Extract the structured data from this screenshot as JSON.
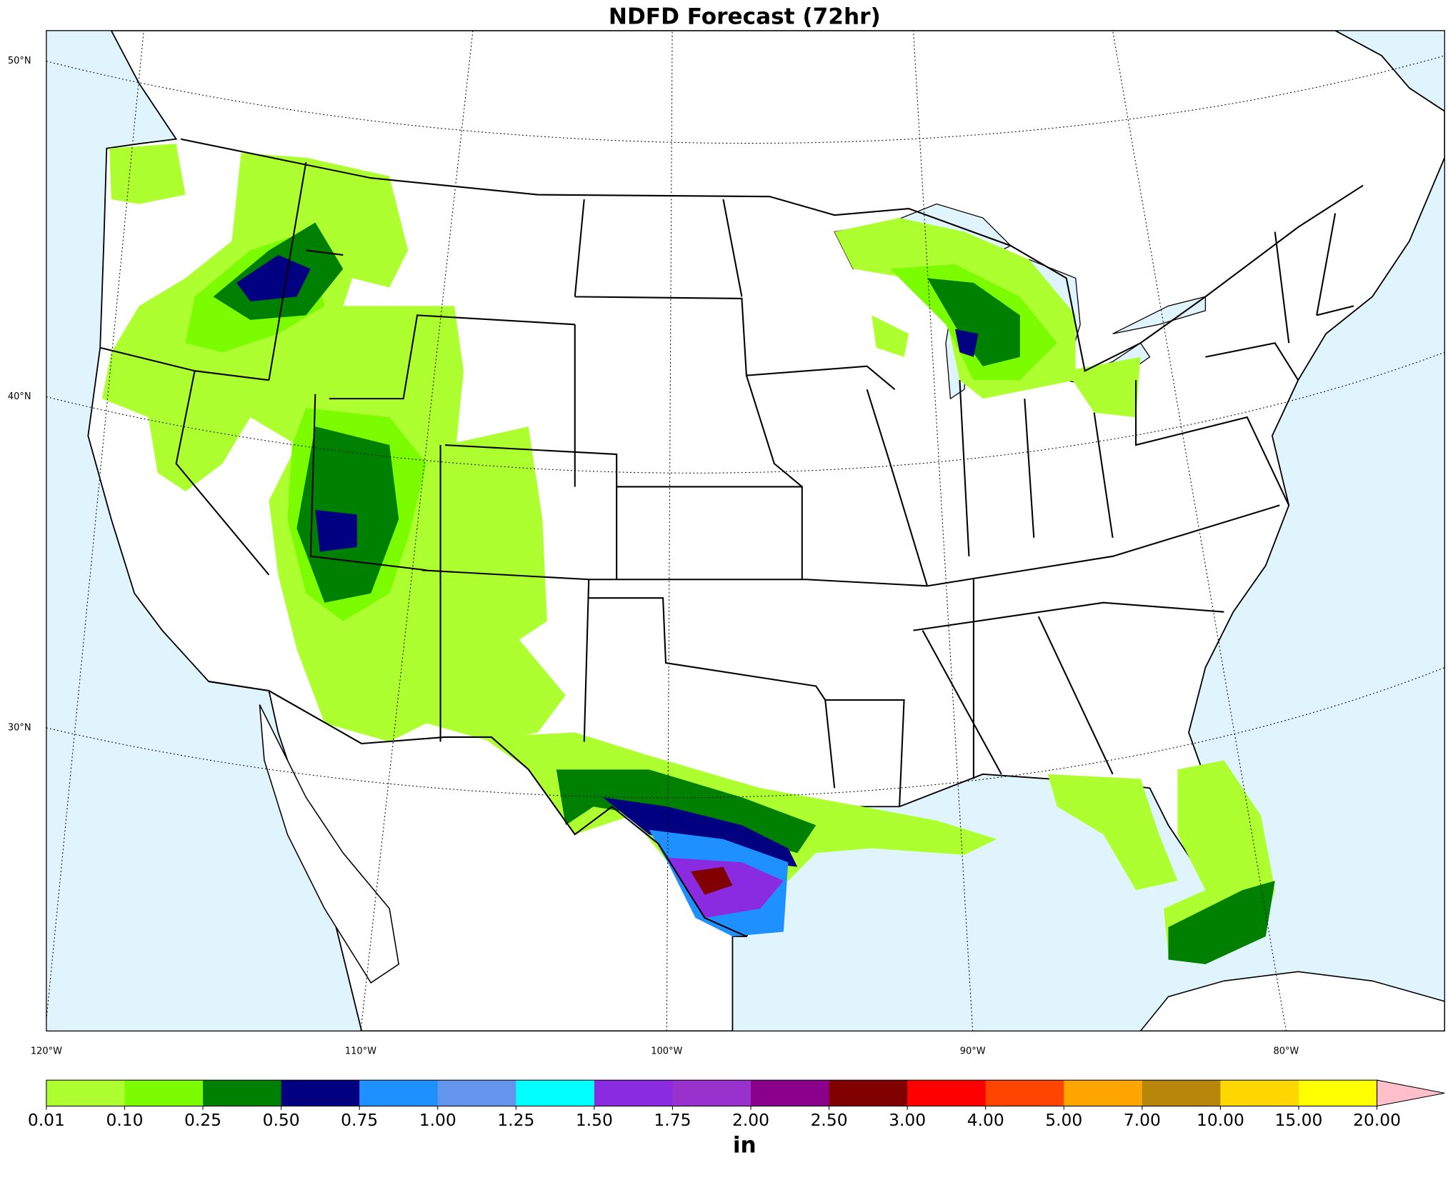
{
  "title": "NDFD Forecast (72hr)",
  "map": {
    "lat_labels": [
      "50°N",
      "40°N",
      "30°N"
    ],
    "lon_labels": [
      "120°W",
      "110°W",
      "100°W",
      "90°W",
      "80°W"
    ]
  },
  "colorbar": {
    "ticks": [
      0.01,
      {
        "value": 0.1,
        "label": "0.10"
      },
      0.25,
      {
        "value": 0.5,
        "label": "0.50"
      },
      0.75,
      {
        "value": 1,
        "label": "1.00"
      },
      1.25,
      {
        "value": 1.5,
        "label": "1.50"
      },
      1.75,
      {
        "value": 2,
        "label": "2.00"
      },
      {
        "value": 2.5,
        "label": "2.50"
      },
      {
        "value": 3,
        "label": "3.00"
      },
      {
        "value": 4,
        "label": "4.00"
      },
      {
        "value": 5,
        "label": "5.00"
      },
      {
        "value": 7,
        "label": "7.00"
      },
      {
        "value": 10,
        "label": "10.00"
      },
      {
        "value": 15,
        "label": "15.00"
      },
      {
        "value": 20,
        "label": "20.00"
      }
    ],
    "colors": [
      "#adff2f",
      "#7cfc00",
      "#008000",
      "#000080",
      "#1e90ff",
      "#6495ed",
      "#00ffff",
      "#8a2be2",
      "#9932cc",
      "#8b008b",
      "#800000",
      "#ff0000",
      "#ff4500",
      "#ffa500",
      "#b8860b",
      "#ffd700",
      "#ffff00"
    ],
    "extend_color": "#ffc0cb",
    "unit": "in"
  }
}
